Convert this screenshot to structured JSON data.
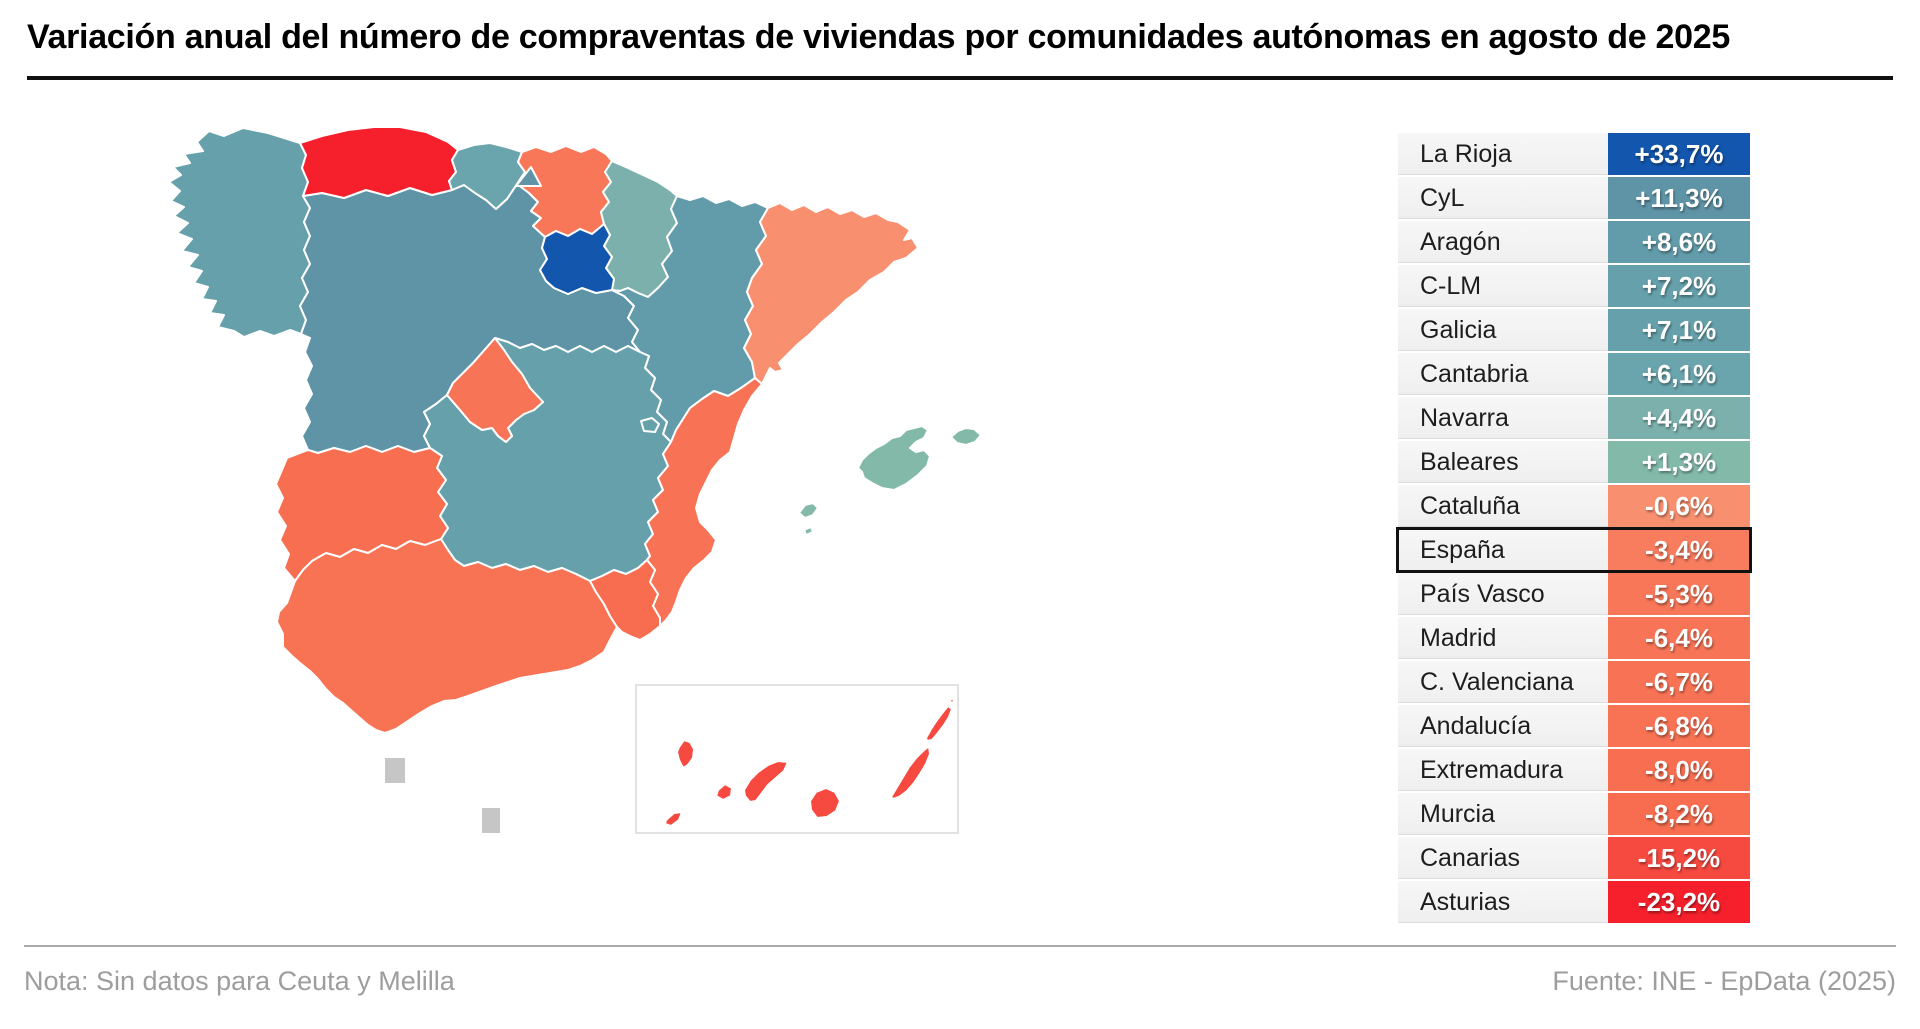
{
  "title": "Variación anual del número de compraventas de viviendas por comunidades autónomas en agosto de 2025",
  "footer": {
    "note": "Nota: Sin datos para Ceuta y Melilla",
    "source": "Fuente: INE - EpData (2025)"
  },
  "no_data_color": "#c6c6c6",
  "rows": [
    {
      "key": "la_rioja",
      "label": "La Rioja",
      "value": "+33,7%",
      "numeric": 33.7,
      "color": "#1356ad",
      "highlight": false
    },
    {
      "key": "cyl",
      "label": "CyL",
      "value": "+11,3%",
      "numeric": 11.3,
      "color": "#5f93a6",
      "highlight": false
    },
    {
      "key": "aragon",
      "label": "Aragón",
      "value": "+8,6%",
      "numeric": 8.6,
      "color": "#629caa",
      "highlight": false
    },
    {
      "key": "clm",
      "label": "C-LM",
      "value": "+7,2%",
      "numeric": 7.2,
      "color": "#65a0ab",
      "highlight": false
    },
    {
      "key": "galicia",
      "label": "Galicia",
      "value": "+7,1%",
      "numeric": 7.1,
      "color": "#66a1ab",
      "highlight": false
    },
    {
      "key": "cantabria",
      "label": "Cantabria",
      "value": "+6,1%",
      "numeric": 6.1,
      "color": "#6aa4ad",
      "highlight": false
    },
    {
      "key": "navarra",
      "label": "Navarra",
      "value": "+4,4%",
      "numeric": 4.4,
      "color": "#7bb0ad",
      "highlight": false
    },
    {
      "key": "baleares",
      "label": "Baleares",
      "value": "+1,3%",
      "numeric": 1.3,
      "color": "#83b9a9",
      "highlight": false
    },
    {
      "key": "cataluna",
      "label": "Cataluña",
      "value": "-0,6%",
      "numeric": -0.6,
      "color": "#f8906f",
      "highlight": false
    },
    {
      "key": "espana",
      "label": "España",
      "value": "-3,4%",
      "numeric": -3.4,
      "color": "#f87c5e",
      "highlight": true
    },
    {
      "key": "pais_vasco",
      "label": "País Vasco",
      "value": "-5,3%",
      "numeric": -5.3,
      "color": "#f87759",
      "highlight": false
    },
    {
      "key": "madrid",
      "label": "Madrid",
      "value": "-6,4%",
      "numeric": -6.4,
      "color": "#f87456",
      "highlight": false
    },
    {
      "key": "c_valenciana",
      "label": "C. Valenciana",
      "value": "-6,7%",
      "numeric": -6.7,
      "color": "#f87355",
      "highlight": false
    },
    {
      "key": "andalucia",
      "label": "Andalucía",
      "value": "-6,8%",
      "numeric": -6.8,
      "color": "#f87254",
      "highlight": false
    },
    {
      "key": "extremadura",
      "label": "Extremadura",
      "value": "-8,0%",
      "numeric": -8.0,
      "color": "#f86e50",
      "highlight": false
    },
    {
      "key": "murcia",
      "label": "Murcia",
      "value": "-8,2%",
      "numeric": -8.2,
      "color": "#f86d4f",
      "highlight": false
    },
    {
      "key": "canarias",
      "label": "Canarias",
      "value": "-15,2%",
      "numeric": -15.2,
      "color": "#f64940",
      "highlight": false
    },
    {
      "key": "asturias",
      "label": "Asturias",
      "value": "-23,2%",
      "numeric": -23.2,
      "color": "#f5202c",
      "highlight": false
    }
  ],
  "chart_data": {
    "type": "choropleth",
    "title": "Variación anual del número de compraventas de viviendas por comunidades autónomas en agosto de 2025",
    "unit": "%",
    "regions": [
      {
        "name": "La Rioja",
        "value": 33.7
      },
      {
        "name": "CyL",
        "value": 11.3
      },
      {
        "name": "Aragón",
        "value": 8.6
      },
      {
        "name": "C-LM",
        "value": 7.2
      },
      {
        "name": "Galicia",
        "value": 7.1
      },
      {
        "name": "Cantabria",
        "value": 6.1
      },
      {
        "name": "Navarra",
        "value": 4.4
      },
      {
        "name": "Baleares",
        "value": 1.3
      },
      {
        "name": "Cataluña",
        "value": -0.6
      },
      {
        "name": "España",
        "value": -3.4
      },
      {
        "name": "País Vasco",
        "value": -5.3
      },
      {
        "name": "Madrid",
        "value": -6.4
      },
      {
        "name": "C. Valenciana",
        "value": -6.7
      },
      {
        "name": "Andalucía",
        "value": -6.8
      },
      {
        "name": "Extremadura",
        "value": -8.0
      },
      {
        "name": "Murcia",
        "value": -8.2
      },
      {
        "name": "Canarias",
        "value": -15.2
      },
      {
        "name": "Asturias",
        "value": -23.2
      }
    ],
    "highlighted_region": "España",
    "no_data": [
      "Ceuta",
      "Melilla"
    ],
    "legend_position": "right-table",
    "source": "INE - EpData (2025)",
    "color_scale": {
      "positive": "blue-teal",
      "negative": "salmon-red"
    }
  }
}
